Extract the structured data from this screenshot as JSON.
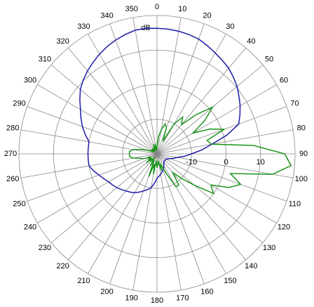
{
  "chart_data": {
    "type": "polar",
    "unit_label": "dB",
    "xlim": [
      0,
      360
    ],
    "xticks": [
      0,
      10,
      20,
      30,
      40,
      50,
      60,
      70,
      80,
      90,
      100,
      110,
      120,
      130,
      140,
      150,
      160,
      170,
      180,
      190,
      200,
      210,
      220,
      230,
      240,
      250,
      260,
      270,
      280,
      290,
      300,
      310,
      320,
      330,
      340,
      350
    ],
    "ylim": [
      -20,
      20
    ],
    "yticks": [
      -10,
      0,
      10
    ],
    "grid": true,
    "x": [
      0,
      5,
      10,
      15,
      20,
      25,
      30,
      35,
      40,
      45,
      50,
      55,
      60,
      65,
      70,
      75,
      80,
      85,
      90,
      95,
      100,
      105,
      110,
      115,
      120,
      125,
      130,
      135,
      140,
      145,
      150,
      155,
      160,
      165,
      170,
      175,
      180,
      185,
      190,
      195,
      200,
      205,
      210,
      215,
      220,
      225,
      230,
      235,
      240,
      245,
      250,
      255,
      260,
      265,
      270,
      275,
      280,
      285,
      290,
      295,
      300,
      305,
      310,
      315,
      320,
      325,
      330,
      335,
      340,
      345,
      350,
      355
    ],
    "series": [
      {
        "color": "#1c1ca8",
        "values": [
          16.3,
          16.2,
          16,
          15.7,
          15.3,
          14.5,
          13.7,
          13,
          12.3,
          11.3,
          10.3,
          9,
          7.8,
          6.5,
          5.2,
          1,
          -3.8,
          -7,
          -10,
          -12,
          -14,
          -15,
          -16,
          -16.5,
          -17,
          -17,
          -17,
          -17,
          -17,
          -16.5,
          -16,
          -15.5,
          -15,
          -14.5,
          -14,
          -13.5,
          -12.9,
          -11.5,
          -10,
          -9.3,
          -8.6,
          -7.8,
          -7,
          -6.5,
          -6,
          -5.4,
          -4.8,
          -4.3,
          -3.8,
          -3,
          -2.1,
          -1,
          0,
          0,
          0,
          0,
          0,
          1.5,
          3,
          4.3,
          5.6,
          7.3,
          9,
          10.2,
          11.3,
          12.3,
          13.3,
          14.2,
          15,
          15.7,
          16.3,
          16.4
        ]
      },
      {
        "color": "#1a961a",
        "values": [
          -18,
          -15,
          -13,
          -11,
          -12,
          -16,
          -10,
          -7,
          -9,
          -4,
          1,
          -3,
          -8,
          -3,
          0.7,
          -5,
          -4,
          8,
          17,
          19,
          14,
          2,
          5.8,
          3,
          -2,
          0,
          -6,
          -10,
          -13,
          -9,
          -9,
          -14,
          -17,
          -15,
          -18,
          -17,
          -16,
          -18,
          -14,
          -17,
          -13,
          -18,
          -16,
          -19,
          -17,
          -18,
          -16,
          -18,
          -17,
          -18,
          -16,
          -15,
          -13,
          -12,
          -12,
          -12,
          -13,
          -15,
          -17,
          -18,
          -19,
          -18,
          -19,
          -18,
          -19,
          -18,
          -19,
          -18,
          -17,
          -19,
          -17,
          -19
        ]
      }
    ]
  }
}
